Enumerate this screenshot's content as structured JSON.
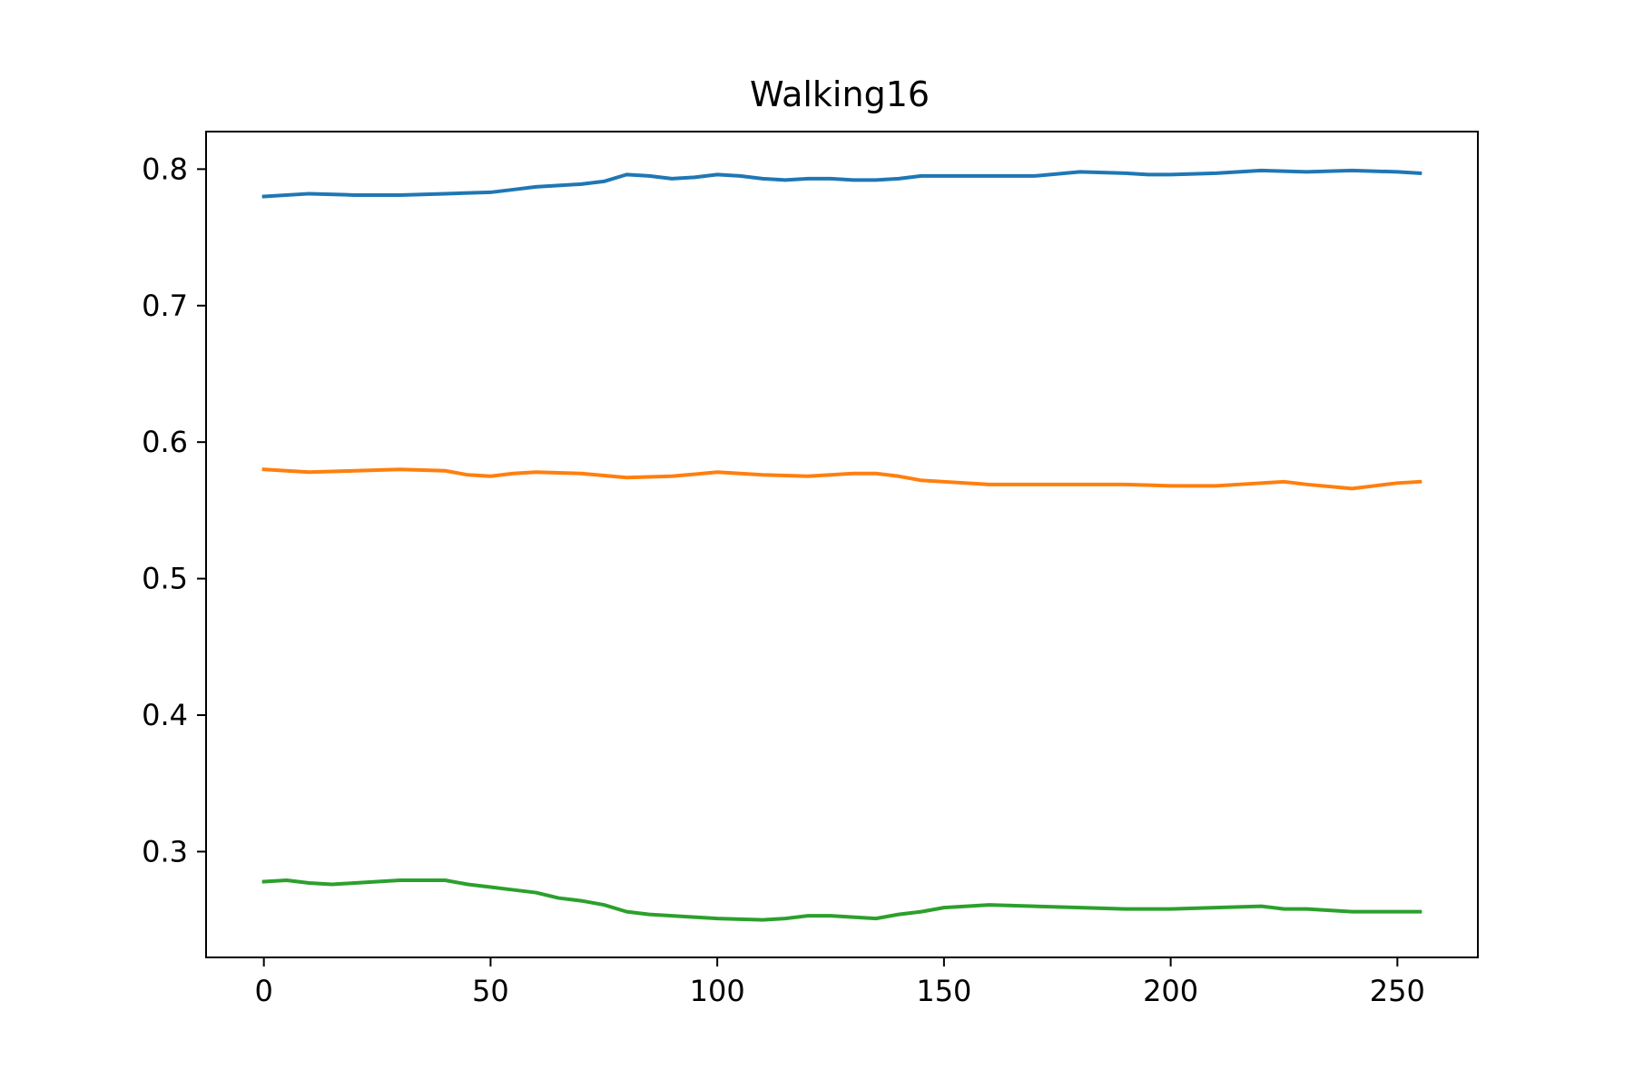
{
  "chart_data": {
    "type": "line",
    "title": "Walking16",
    "xlabel": "",
    "ylabel": "",
    "xlim": [
      -12.75,
      267.75
    ],
    "ylim": [
      0.2225,
      0.8275
    ],
    "xticks": [
      0,
      50,
      100,
      150,
      200,
      250
    ],
    "yticks": [
      0.3,
      0.4,
      0.5,
      0.6,
      0.7,
      0.8
    ],
    "xtick_labels": [
      "0",
      "50",
      "100",
      "150",
      "200",
      "250"
    ],
    "ytick_labels": [
      "0.3",
      "0.4",
      "0.5",
      "0.6",
      "0.7",
      "0.8"
    ],
    "grid": false,
    "legend": "none",
    "series": [
      {
        "color": "#1f77b4",
        "x": [
          0,
          10,
          20,
          30,
          40,
          50,
          55,
          60,
          65,
          70,
          75,
          80,
          85,
          90,
          95,
          100,
          105,
          110,
          115,
          120,
          125,
          130,
          135,
          140,
          145,
          150,
          160,
          170,
          180,
          190,
          195,
          200,
          210,
          220,
          230,
          240,
          250,
          255
        ],
        "y": [
          0.78,
          0.782,
          0.781,
          0.781,
          0.782,
          0.783,
          0.785,
          0.787,
          0.788,
          0.789,
          0.791,
          0.796,
          0.795,
          0.793,
          0.794,
          0.796,
          0.795,
          0.793,
          0.792,
          0.793,
          0.793,
          0.792,
          0.792,
          0.793,
          0.795,
          0.795,
          0.795,
          0.795,
          0.798,
          0.797,
          0.796,
          0.796,
          0.797,
          0.799,
          0.798,
          0.799,
          0.798,
          0.797
        ]
      },
      {
        "color": "#ff7f0e",
        "x": [
          0,
          5,
          10,
          20,
          30,
          40,
          45,
          50,
          55,
          60,
          70,
          80,
          90,
          100,
          110,
          120,
          130,
          135,
          140,
          145,
          150,
          160,
          170,
          180,
          190,
          200,
          210,
          220,
          225,
          230,
          240,
          245,
          250,
          255
        ],
        "y": [
          0.58,
          0.579,
          0.578,
          0.579,
          0.58,
          0.579,
          0.576,
          0.575,
          0.577,
          0.578,
          0.577,
          0.574,
          0.575,
          0.578,
          0.576,
          0.575,
          0.577,
          0.577,
          0.575,
          0.572,
          0.571,
          0.569,
          0.569,
          0.569,
          0.569,
          0.568,
          0.568,
          0.57,
          0.571,
          0.569,
          0.566,
          0.568,
          0.57,
          0.571
        ]
      },
      {
        "color": "#2ca02c",
        "x": [
          0,
          5,
          10,
          15,
          20,
          30,
          40,
          45,
          50,
          55,
          60,
          65,
          70,
          75,
          80,
          85,
          90,
          95,
          100,
          110,
          115,
          120,
          125,
          130,
          135,
          140,
          145,
          150,
          160,
          170,
          180,
          190,
          200,
          210,
          220,
          225,
          230,
          240,
          250,
          255
        ],
        "y": [
          0.278,
          0.279,
          0.277,
          0.276,
          0.277,
          0.279,
          0.279,
          0.276,
          0.274,
          0.272,
          0.27,
          0.266,
          0.264,
          0.261,
          0.256,
          0.254,
          0.253,
          0.252,
          0.251,
          0.25,
          0.251,
          0.253,
          0.253,
          0.252,
          0.251,
          0.254,
          0.256,
          0.259,
          0.261,
          0.26,
          0.259,
          0.258,
          0.258,
          0.259,
          0.26,
          0.258,
          0.258,
          0.256,
          0.256,
          0.256
        ]
      }
    ]
  }
}
